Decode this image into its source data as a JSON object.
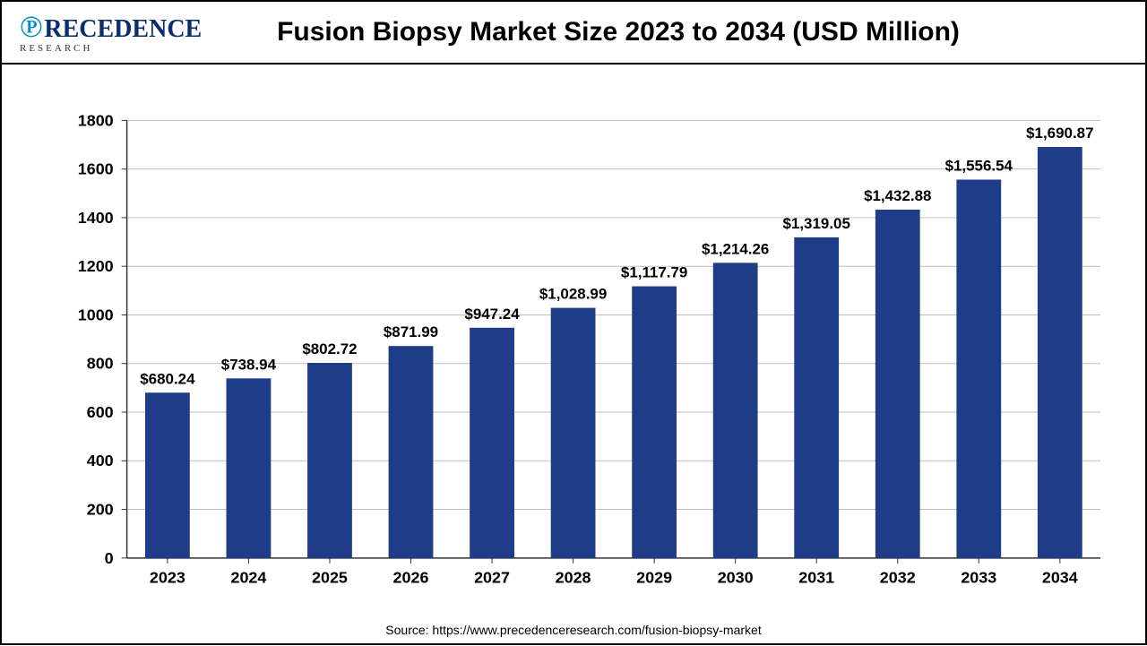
{
  "title": "Fusion Biopsy Market Size 2023 to 2034 (USD Million)",
  "logo": {
    "brand_main": "RECEDENCE",
    "brand_sub": "RESEARCH"
  },
  "source": "Source: https://www.precedenceresearch.com/fusion-biopsy-market",
  "chart": {
    "type": "bar",
    "categories": [
      "2023",
      "2024",
      "2025",
      "2026",
      "2027",
      "2028",
      "2029",
      "2030",
      "2031",
      "2032",
      "2033",
      "2034"
    ],
    "values": [
      680.24,
      738.94,
      802.72,
      871.99,
      947.24,
      1028.99,
      1117.79,
      1214.26,
      1319.05,
      1432.88,
      1556.54,
      1690.87
    ],
    "value_labels": [
      "$680.24",
      "$738.94",
      "$802.72",
      "$871.99",
      "$947.24",
      "$1,028.99",
      "$1,117.79",
      "$1,214.26",
      "$1,319.05",
      "$1,432.88",
      "$1,556.54",
      "$1,690.87"
    ],
    "ylim": [
      0,
      1800
    ],
    "ytick_step": 200,
    "bar_color": "#1f3c88",
    "background_color": "#ffffff",
    "grid_color": "#bfbfbf",
    "axis_color": "#333333",
    "tick_fontsize": 18,
    "value_fontsize": 17,
    "bar_width_ratio": 0.55
  }
}
